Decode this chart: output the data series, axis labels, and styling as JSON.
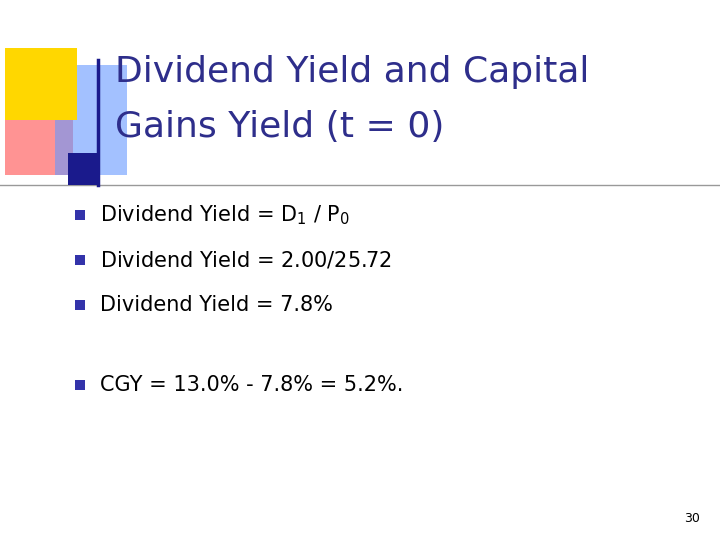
{
  "title_line1": "Dividend Yield and Capital",
  "title_line2": "Gains Yield (t = 0)",
  "title_color": "#2E2E8B",
  "background_color": "#FFFFFF",
  "bullet_color": "#3333AA",
  "bullet_points_text": [
    "Dividend Yield = D$_1$ / P$_0$",
    "Dividend Yield = $2.00 / $25.72",
    "Dividend Yield = 7.8%"
  ],
  "bullet_point4": "CGY = 13.0% - 7.8% = 5.2%.",
  "page_number": "30",
  "decoration_colors": {
    "yellow": "#FFD700",
    "blue_dark": "#1A1A8C",
    "red": "#FF6666",
    "blue_light": "#6699FF"
  },
  "line_color": "#999999",
  "text_color": "#000000",
  "font_size_title": 26,
  "font_size_bullet": 15,
  "font_size_page": 9
}
